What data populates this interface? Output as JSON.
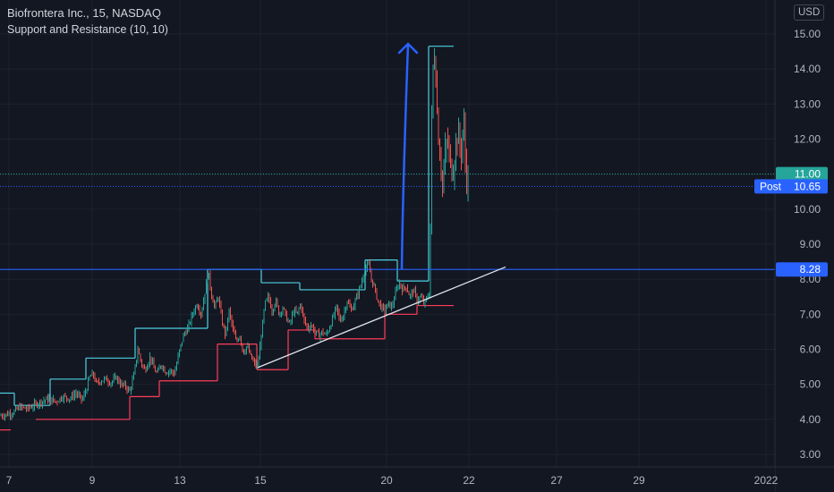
{
  "header": {
    "symbol_line": "Biofrontera Inc., 15, NASDAQ",
    "indicator_line": "Support and Resistance (10, 10)",
    "currency": "USD"
  },
  "colors": {
    "background": "#131722",
    "grid": "#1e222d",
    "axis_text": "#b2b5be",
    "up": "#26a69a",
    "down": "#ef5350",
    "resistance": "#4dd0e1",
    "support": "#ff3d5a",
    "horizontal_line": "#2962ff",
    "arrow": "#2962ff",
    "trendline": "#e0e3eb",
    "last_price": "#26a69a",
    "post_price": "#2962ff"
  },
  "chart_data": {
    "type": "candlestick",
    "title": "Biofrontera Inc., 15, NASDAQ",
    "subtitle": "Support and Resistance (10, 10)",
    "x_ticks": [
      "7",
      "9",
      "13",
      "15",
      "20",
      "22",
      "27",
      "29",
      "2022"
    ],
    "y_ticks": [
      "15.00",
      "14.00",
      "13.00",
      "12.00",
      "11.00",
      "10.00",
      "9.00",
      "8.00",
      "7.00",
      "6.00",
      "5.00",
      "4.00",
      "3.00"
    ],
    "ylim": [
      2.64,
      15.7
    ],
    "grid": true,
    "price_trace": [
      [
        0,
        4.1
      ],
      [
        8,
        4.15
      ],
      [
        15,
        4.2
      ],
      [
        22,
        4.35
      ],
      [
        30,
        4.3
      ],
      [
        38,
        4.4
      ],
      [
        45,
        4.5
      ],
      [
        50,
        4.55
      ],
      [
        55,
        4.6
      ],
      [
        62,
        4.5
      ],
      [
        70,
        4.65
      ],
      [
        78,
        4.6
      ],
      [
        85,
        4.75
      ],
      [
        92,
        4.55
      ],
      [
        97,
        4.9
      ],
      [
        100,
        5.2
      ],
      [
        104,
        5.3
      ],
      [
        108,
        5.0
      ],
      [
        112,
        5.1
      ],
      [
        118,
        5.15
      ],
      [
        124,
        5.05
      ],
      [
        130,
        5.2
      ],
      [
        135,
        5.0
      ],
      [
        140,
        4.95
      ],
      [
        145,
        4.8
      ],
      [
        150,
        5.3
      ],
      [
        154,
        6.0
      ],
      [
        158,
        5.6
      ],
      [
        162,
        5.4
      ],
      [
        168,
        5.8
      ],
      [
        172,
        5.45
      ],
      [
        176,
        5.3
      ],
      [
        180,
        5.6
      ],
      [
        185,
        5.35
      ],
      [
        190,
        5.4
      ],
      [
        195,
        5.3
      ],
      [
        200,
        5.9
      ],
      [
        205,
        6.4
      ],
      [
        210,
        6.6
      ],
      [
        215,
        7.0
      ],
      [
        220,
        7.3
      ],
      [
        225,
        7.0
      ],
      [
        230,
        7.8
      ],
      [
        233,
        8.2
      ],
      [
        236,
        7.6
      ],
      [
        240,
        7.2
      ],
      [
        244,
        7.5
      ],
      [
        248,
        6.8
      ],
      [
        252,
        6.4
      ],
      [
        256,
        7.1
      ],
      [
        260,
        6.6
      ],
      [
        264,
        6.2
      ],
      [
        268,
        6.4
      ],
      [
        272,
        5.9
      ],
      [
        276,
        6.1
      ],
      [
        280,
        5.8
      ],
      [
        284,
        5.6
      ],
      [
        288,
        5.5
      ],
      [
        292,
        6.4
      ],
      [
        296,
        7.3
      ],
      [
        300,
        7.5
      ],
      [
        304,
        7.1
      ],
      [
        308,
        7.4
      ],
      [
        312,
        7.0
      ],
      [
        316,
        7.2
      ],
      [
        320,
        6.9
      ],
      [
        324,
        6.7
      ],
      [
        328,
        7.1
      ],
      [
        332,
        7.0
      ],
      [
        336,
        7.3
      ],
      [
        340,
        6.8
      ],
      [
        344,
        6.6
      ],
      [
        348,
        6.7
      ],
      [
        352,
        6.5
      ],
      [
        356,
        6.4
      ],
      [
        360,
        6.5
      ],
      [
        364,
        6.4
      ],
      [
        368,
        6.6
      ],
      [
        372,
        6.9
      ],
      [
        376,
        7.2
      ],
      [
        380,
        6.8
      ],
      [
        384,
        7.0
      ],
      [
        388,
        7.4
      ],
      [
        392,
        7.1
      ],
      [
        396,
        7.3
      ],
      [
        400,
        7.6
      ],
      [
        404,
        7.9
      ],
      [
        408,
        8.3
      ],
      [
        412,
        8.4
      ],
      [
        415,
        8.0
      ],
      [
        418,
        7.8
      ],
      [
        422,
        7.4
      ],
      [
        426,
        7.2
      ],
      [
        430,
        7.1
      ],
      [
        434,
        7.3
      ],
      [
        438,
        7.2
      ],
      [
        442,
        7.6
      ],
      [
        446,
        7.9
      ],
      [
        450,
        7.7
      ],
      [
        454,
        7.8
      ],
      [
        458,
        7.5
      ],
      [
        462,
        7.7
      ],
      [
        466,
        7.4
      ],
      [
        470,
        7.5
      ],
      [
        474,
        7.3
      ],
      [
        478,
        7.5
      ],
      [
        480,
        7.6
      ],
      [
        481,
        9.6
      ],
      [
        483,
        13.5
      ],
      [
        485,
        14.6
      ],
      [
        487,
        13.8
      ],
      [
        489,
        12.5
      ],
      [
        491,
        11.7
      ],
      [
        493,
        11.2
      ],
      [
        495,
        10.6
      ],
      [
        497,
        11.5
      ],
      [
        500,
        12.0
      ],
      [
        503,
        11.3
      ],
      [
        506,
        11.0
      ],
      [
        509,
        11.8
      ],
      [
        512,
        12.2
      ],
      [
        515,
        11.5
      ],
      [
        518,
        12.6
      ],
      [
        520,
        11.4
      ],
      [
        522,
        10.7
      ],
      [
        524,
        11.0
      ]
    ],
    "resistance_levels": [
      {
        "x0": 0,
        "x1": 16,
        "y": 4.75
      },
      {
        "x0": 16,
        "x1": 56,
        "y": 4.4
      },
      {
        "x0": 56,
        "x1": 96,
        "y": 5.15
      },
      {
        "x0": 96,
        "x1": 151,
        "y": 5.75
      },
      {
        "x0": 151,
        "x1": 232,
        "y": 6.6
      },
      {
        "x0": 232,
        "x1": 292,
        "y": 8.28
      },
      {
        "x0": 292,
        "x1": 335,
        "y": 7.9
      },
      {
        "x0": 335,
        "x1": 408,
        "y": 7.7
      },
      {
        "x0": 408,
        "x1": 444,
        "y": 8.55
      },
      {
        "x0": 444,
        "x1": 479,
        "y": 7.95
      },
      {
        "x0": 479,
        "x1": 507,
        "y": 14.65
      }
    ],
    "support_levels": [
      {
        "x0": 0,
        "x1": 12,
        "y": 3.7
      },
      {
        "x0": 40,
        "x1": 145,
        "y": 4.0
      },
      {
        "x0": 145,
        "x1": 178,
        "y": 4.65
      },
      {
        "x0": 178,
        "x1": 243,
        "y": 5.1
      },
      {
        "x0": 243,
        "x1": 287,
        "y": 6.15
      },
      {
        "x0": 287,
        "x1": 322,
        "y": 5.42
      },
      {
        "x0": 322,
        "x1": 352,
        "y": 6.55
      },
      {
        "x0": 352,
        "x1": 430,
        "y": 6.3
      },
      {
        "x0": 430,
        "x1": 466,
        "y": 7.0
      },
      {
        "x0": 466,
        "x1": 507,
        "y": 7.25
      }
    ],
    "horizontal_line": {
      "y": 8.28,
      "label": "8.28"
    },
    "trendline": {
      "x0": 288,
      "y0": 5.48,
      "x1": 565,
      "y1": 8.35
    },
    "arrow": {
      "x0": 449,
      "y0": 8.28,
      "x1": 456,
      "y1": 14.72
    },
    "last_price": {
      "y": 11.0,
      "label": "11.00"
    },
    "post_price": {
      "y": 10.65,
      "tag": "Post",
      "label": "10.65"
    }
  }
}
